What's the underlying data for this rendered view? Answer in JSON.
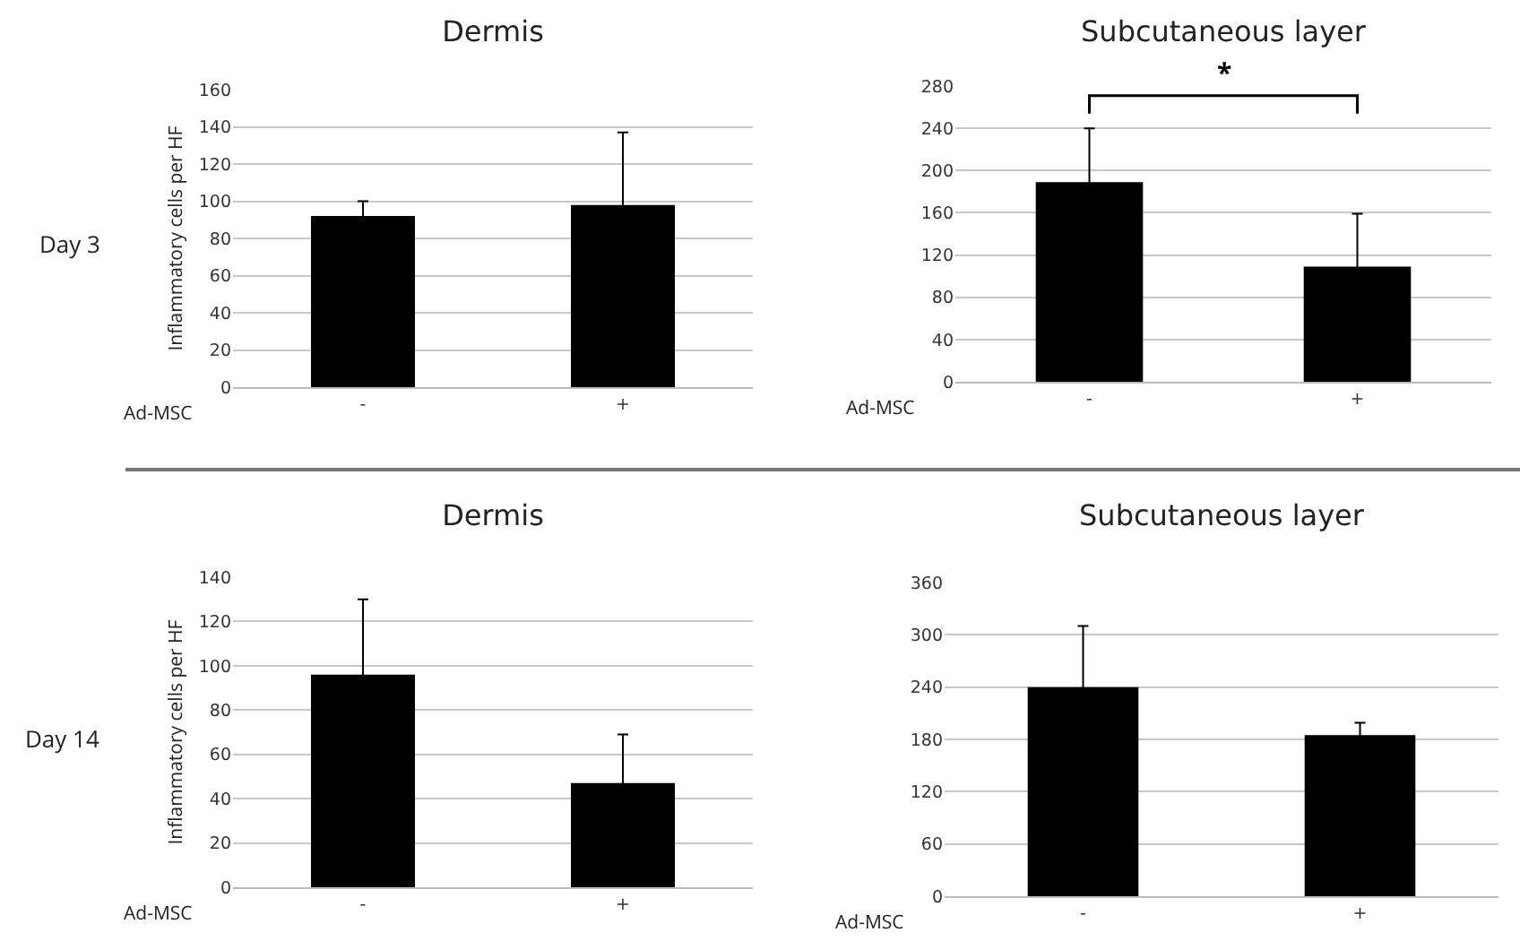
{
  "chart_data": [
    {
      "type": "bar",
      "title": "Dermis",
      "ylabel": "Inflammatory cells per HF",
      "xlabel": "Ad-MSC",
      "categories": [
        "-",
        "+"
      ],
      "values": [
        92,
        98
      ],
      "errors": [
        8,
        39
      ],
      "color": "#000000",
      "ylim": [
        0,
        160
      ],
      "yticks": [
        0,
        20,
        40,
        60,
        80,
        100,
        120,
        140,
        160
      ],
      "grid": "y",
      "annotations": [
        "Day 3"
      ]
    },
    {
      "type": "bar",
      "title": "Subcutaneous layer",
      "xlabel": "Ad-MSC",
      "categories": [
        "-",
        "+"
      ],
      "values": [
        189,
        109
      ],
      "errors": [
        51,
        50
      ],
      "color": "#000000",
      "ylim": [
        0,
        280
      ],
      "yticks": [
        0,
        40,
        80,
        120,
        160,
        200,
        240,
        280
      ],
      "grid": "y",
      "annotations": [
        "*"
      ]
    },
    {
      "type": "bar",
      "title": "Dermis",
      "ylabel": "Inflammatory cells per HF",
      "xlabel": "Ad-MSC",
      "categories": [
        "-",
        "+"
      ],
      "values": [
        96,
        47
      ],
      "errors": [
        34,
        22
      ],
      "color": "#000000",
      "ylim": [
        0,
        140
      ],
      "yticks": [
        0,
        20,
        40,
        60,
        80,
        100,
        120,
        140
      ],
      "grid": "y",
      "annotations": [
        "Day 14"
      ]
    },
    {
      "type": "bar",
      "title": "Subcutaneous layer",
      "xlabel": "Ad-MSC",
      "categories": [
        "-",
        "+"
      ],
      "values": [
        240,
        185
      ],
      "errors": [
        70,
        14
      ],
      "color": "#000000",
      "ylim": [
        0,
        360
      ],
      "yticks": [
        0,
        60,
        120,
        180,
        240,
        300,
        360
      ],
      "grid": "y"
    }
  ]
}
